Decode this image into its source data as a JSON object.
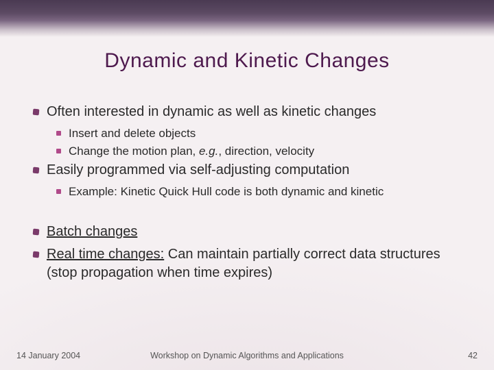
{
  "title": "Dynamic and Kinetic Changes",
  "bullets": {
    "b1": "Often interested in dynamic as well as kinetic changes",
    "b1a": "Insert and delete objects",
    "b1b_pre": "Change the motion plan, ",
    "b1b_em": "e.g.",
    "b1b_post": ", direction, velocity",
    "b2": "Easily programmed via self-adjusting computation",
    "b2a": "Example: Kinetic Quick Hull code is both dynamic and kinetic",
    "b3_ul": "Batch changes",
    "b4_ul": "Real time changes:",
    "b4_rest": " Can maintain partially correct data structures (stop propagation when time expires)"
  },
  "footer": {
    "date": "14 January 2004",
    "venue": "Workshop on Dynamic Algorithms and Applications",
    "page": "42"
  },
  "colors": {
    "title_color": "#4e1a4e",
    "bullet1_color": "#7a3a6a",
    "bullet2_color": "#b04a8a",
    "background": "#f5f0f2",
    "band_dark": "#4a3a52"
  }
}
